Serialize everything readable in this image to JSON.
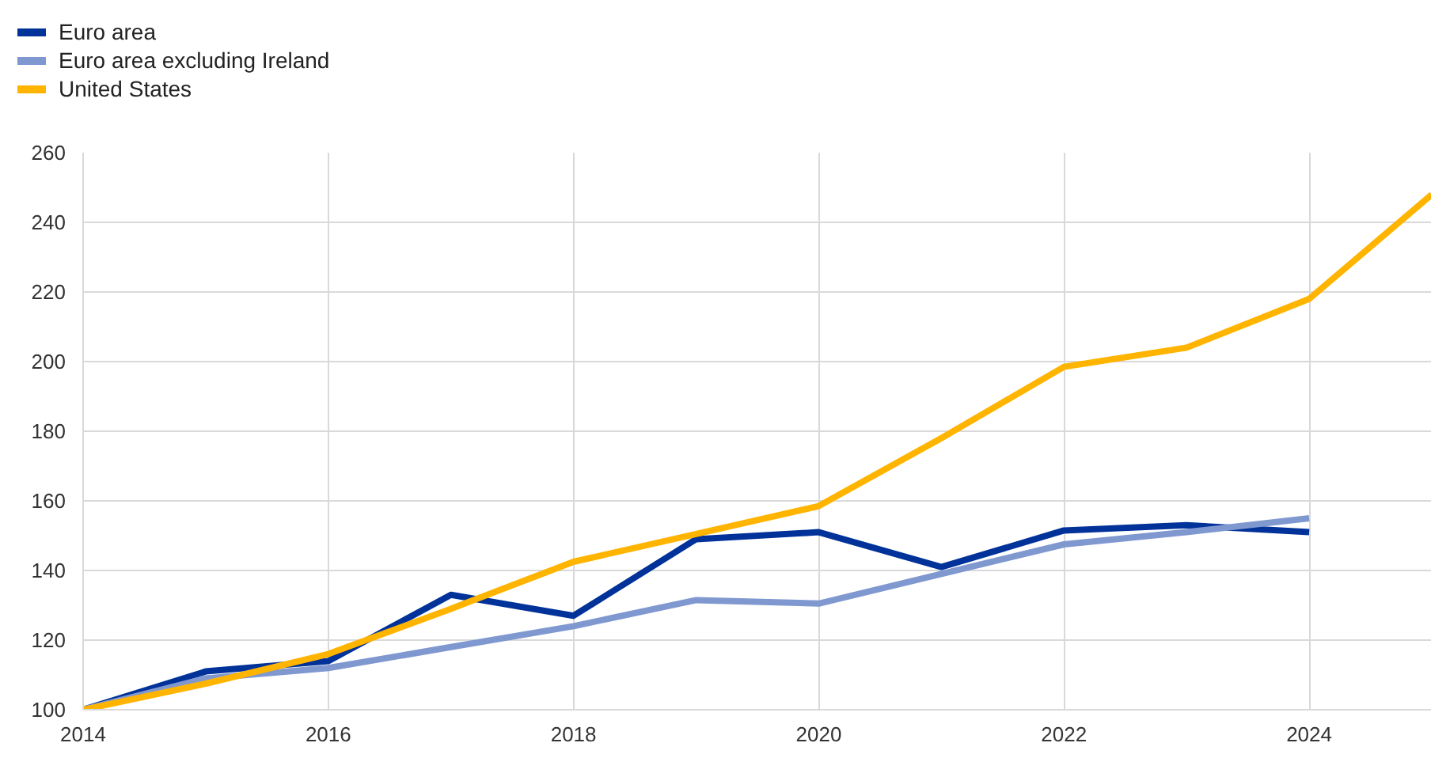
{
  "chart_data": {
    "type": "line",
    "x": [
      2014,
      2015,
      2016,
      2017,
      2018,
      2019,
      2020,
      2021,
      2022,
      2023,
      2024,
      2025
    ],
    "series": [
      {
        "name": "Euro area",
        "color": "#003299",
        "values": [
          100,
          111,
          114,
          133,
          127,
          149,
          151,
          141,
          151.5,
          153,
          151,
          null
        ]
      },
      {
        "name": "Euro area excluding Ireland",
        "color": "#7f98d0",
        "values": [
          100,
          109,
          112,
          118,
          124,
          131.5,
          130.5,
          139,
          147.5,
          151,
          155,
          null
        ]
      },
      {
        "name": "United States",
        "color": "#ffb400",
        "values": [
          100,
          107.5,
          116,
          129,
          142.5,
          150.5,
          158.5,
          178,
          198.5,
          204,
          218,
          248
        ]
      }
    ],
    "xlim": [
      2014,
      2025
    ],
    "xticks": [
      2014,
      2016,
      2018,
      2020,
      2022,
      2024
    ],
    "ylim": [
      100,
      260
    ],
    "yticks": [
      100,
      120,
      140,
      160,
      180,
      200,
      220,
      240,
      260
    ],
    "grid": true,
    "legend": "top left",
    "marker": "none",
    "line_style": "solid"
  }
}
